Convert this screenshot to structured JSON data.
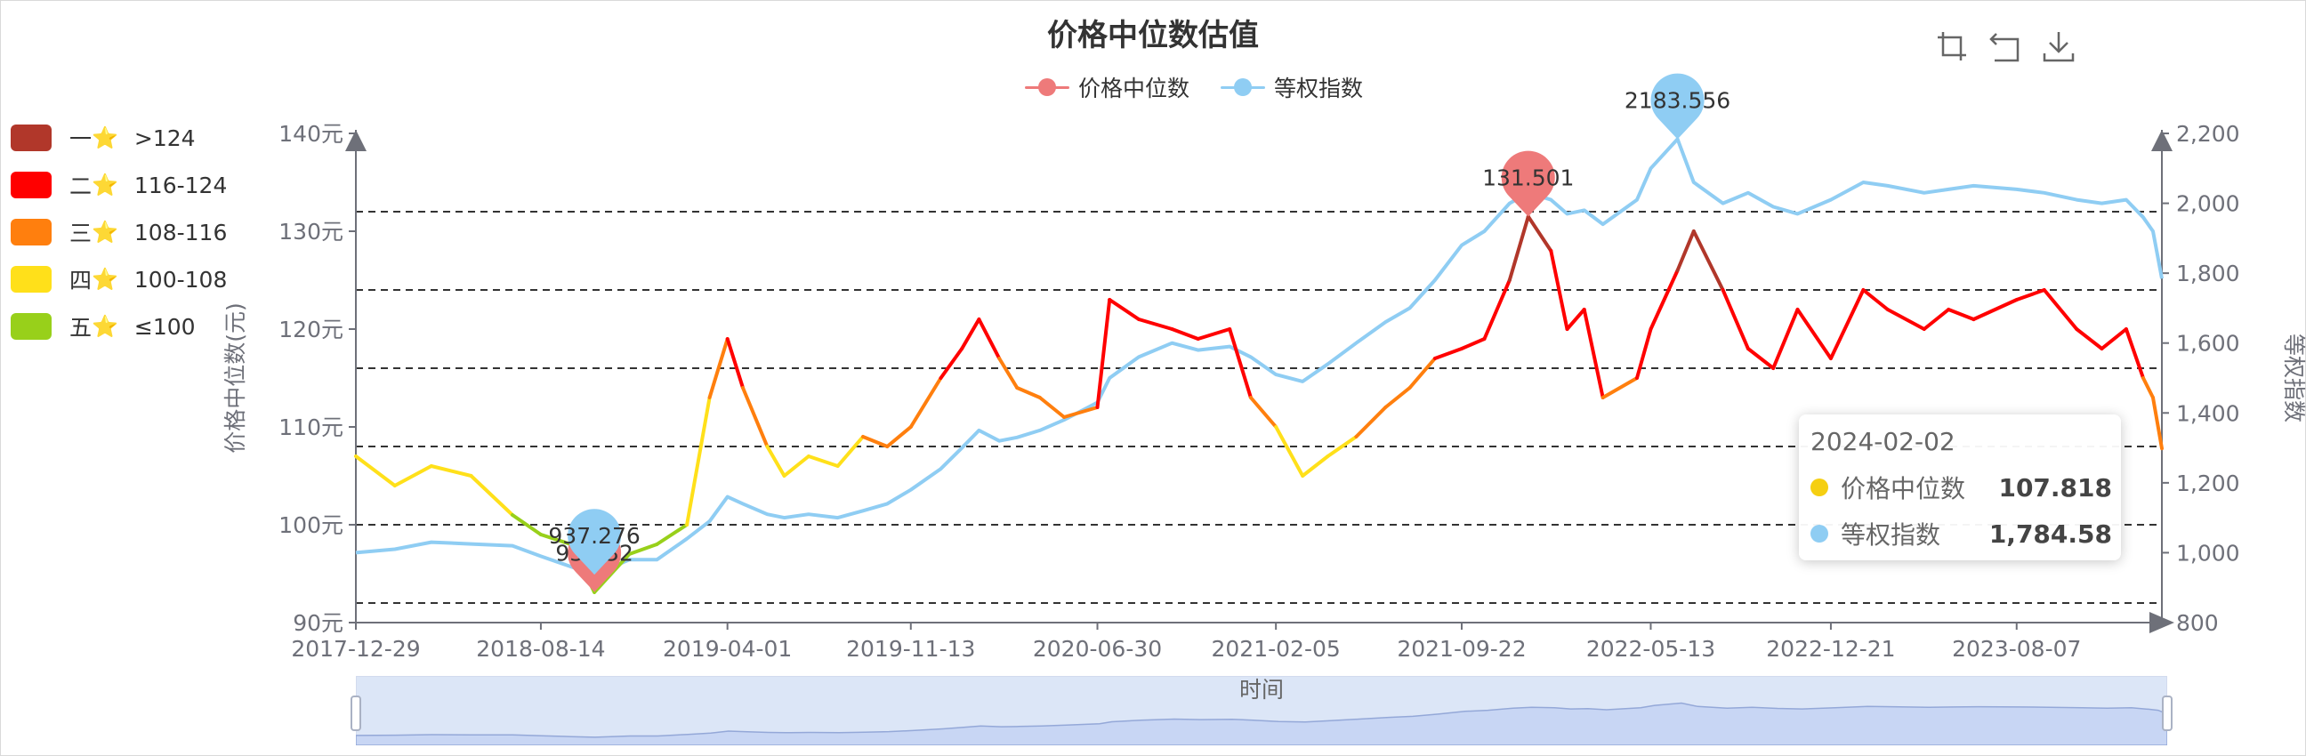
{
  "title": "价格中位数估值",
  "legend": [
    {
      "name": "价格中位数",
      "color": "#ee7a7a"
    },
    {
      "name": "等权指数",
      "color": "#8fcdf3"
    }
  ],
  "toolbox": {
    "zoom_icon": "area-zoom-icon",
    "back_icon": "zoom-reset-icon",
    "save_icon": "download-icon"
  },
  "visual_map": [
    {
      "level": "一",
      "range": ">124",
      "color": "#b1372a"
    },
    {
      "level": "二",
      "range": "116-124",
      "color": "#ff0000"
    },
    {
      "level": "三",
      "range": "108-116",
      "color": "#ff7f0e"
    },
    {
      "level": "四",
      "range": "100-108",
      "color": "#ffe01a"
    },
    {
      "level": "五",
      "range": "≤100",
      "color": "#98d01a"
    }
  ],
  "star_char": "⭐",
  "tooltip": {
    "date": "2024-02-02",
    "rows": [
      {
        "name": "价格中位数",
        "value": "107.818",
        "color": "#f5cf12"
      },
      {
        "name": "等权指数",
        "value": "1,784.58",
        "color": "#8fcdf3"
      }
    ]
  },
  "zoom_label": "时间",
  "chart_data": {
    "type": "line",
    "title": "价格中位数估值",
    "xlabel": "时间",
    "x_ticks": [
      "2017-12-29",
      "2018-08-14",
      "2019-04-01",
      "2019-11-13",
      "2020-06-30",
      "2021-02-05",
      "2021-09-22",
      "2022-05-13",
      "2022-12-21",
      "2023-08-07"
    ],
    "x_range": [
      "2017-12-29",
      "2024-02-02"
    ],
    "y_left": {
      "label": "价格中位数(元)",
      "range": [
        90,
        140
      ],
      "ticks": [
        "90元",
        "100元",
        "110元",
        "120元",
        "130元",
        "140元"
      ]
    },
    "y_right": {
      "label": "等权指数",
      "range": [
        800,
        2200
      ],
      "ticks": [
        "800",
        "1,000",
        "1,200",
        "1,400",
        "1,600",
        "1,800",
        "2,000",
        "2,200"
      ]
    },
    "reference_lines_left_axis": [
      92,
      100,
      108,
      116,
      124,
      132
    ],
    "series": [
      {
        "name": "价格中位数",
        "axis": "left",
        "x": [
          "2017-12-29",
          "2018-02-15",
          "2018-04-01",
          "2018-05-20",
          "2018-07-10",
          "2018-08-14",
          "2018-09-20",
          "2018-10-19",
          "2018-12-01",
          "2019-01-04",
          "2019-02-10",
          "2019-03-10",
          "2019-04-01",
          "2019-04-20",
          "2019-05-20",
          "2019-06-10",
          "2019-07-10",
          "2019-08-15",
          "2019-09-15",
          "2019-10-15",
          "2019-11-13",
          "2019-12-20",
          "2020-01-15",
          "2020-02-05",
          "2020-03-01",
          "2020-03-23",
          "2020-04-20",
          "2020-05-20",
          "2020-06-30",
          "2020-07-15",
          "2020-08-20",
          "2020-09-30",
          "2020-11-01",
          "2020-12-10",
          "2021-01-05",
          "2021-02-05",
          "2021-03-10",
          "2021-04-10",
          "2021-05-15",
          "2021-06-20",
          "2021-07-20",
          "2021-08-20",
          "2021-09-22",
          "2021-10-20",
          "2021-11-20",
          "2021-12-13",
          "2022-01-10",
          "2022-01-30",
          "2022-02-20",
          "2022-03-15",
          "2022-04-26",
          "2022-05-13",
          "2022-06-15",
          "2022-07-05",
          "2022-08-10",
          "2022-09-10",
          "2022-10-11",
          "2022-11-10",
          "2022-12-21",
          "2023-01-30",
          "2023-03-01",
          "2023-04-15",
          "2023-05-15",
          "2023-06-15",
          "2023-08-07",
          "2023-09-10",
          "2023-10-20",
          "2023-11-20",
          "2023-12-20",
          "2024-01-10",
          "2024-01-22",
          "2024-02-02"
        ],
        "values": [
          107,
          104,
          106,
          105,
          101,
          99,
          98,
          93.1,
          97,
          98,
          100,
          113,
          119,
          114,
          108,
          105,
          107,
          106,
          109,
          108,
          110,
          115,
          118,
          121,
          117,
          114,
          113,
          111,
          112,
          123,
          121,
          120,
          119,
          120,
          113,
          110,
          105,
          107,
          109,
          112,
          114,
          117,
          118,
          119,
          125,
          131.5,
          128,
          120,
          122,
          113,
          115,
          120,
          126,
          130,
          124,
          118,
          116,
          122,
          117,
          124,
          122,
          120,
          122,
          121,
          123,
          124,
          120,
          118,
          120,
          115,
          113,
          107.8
        ]
      },
      {
        "name": "等权指数",
        "axis": "right",
        "x": [
          "2017-12-29",
          "2018-02-15",
          "2018-04-01",
          "2018-05-20",
          "2018-07-10",
          "2018-08-14",
          "2018-09-20",
          "2018-10-19",
          "2018-12-01",
          "2019-01-04",
          "2019-02-10",
          "2019-03-10",
          "2019-04-01",
          "2019-04-20",
          "2019-05-20",
          "2019-06-10",
          "2019-07-10",
          "2019-08-15",
          "2019-09-15",
          "2019-10-15",
          "2019-11-13",
          "2019-12-20",
          "2020-01-15",
          "2020-02-05",
          "2020-03-01",
          "2020-03-23",
          "2020-04-20",
          "2020-05-20",
          "2020-06-30",
          "2020-07-15",
          "2020-08-20",
          "2020-09-30",
          "2020-11-01",
          "2020-12-10",
          "2021-01-05",
          "2021-02-05",
          "2021-03-10",
          "2021-04-10",
          "2021-05-15",
          "2021-06-20",
          "2021-07-20",
          "2021-08-20",
          "2021-09-22",
          "2021-10-20",
          "2021-11-20",
          "2021-12-13",
          "2022-01-10",
          "2022-01-30",
          "2022-02-20",
          "2022-03-15",
          "2022-04-26",
          "2022-05-13",
          "2022-06-15",
          "2022-07-05",
          "2022-08-10",
          "2022-09-10",
          "2022-10-11",
          "2022-11-10",
          "2022-12-21",
          "2023-01-30",
          "2023-03-01",
          "2023-04-15",
          "2023-05-15",
          "2023-06-15",
          "2023-08-07",
          "2023-09-10",
          "2023-10-20",
          "2023-11-20",
          "2023-12-20",
          "2024-01-10",
          "2024-01-22",
          "2024-02-02"
        ],
        "values": [
          1000,
          1010,
          1030,
          1025,
          1020,
          990,
          960,
          937.3,
          980,
          980,
          1040,
          1090,
          1160,
          1140,
          1110,
          1100,
          1110,
          1100,
          1120,
          1140,
          1180,
          1240,
          1300,
          1350,
          1320,
          1330,
          1350,
          1380,
          1430,
          1500,
          1560,
          1600,
          1580,
          1590,
          1560,
          1510,
          1490,
          1540,
          1600,
          1660,
          1700,
          1780,
          1880,
          1920,
          2000,
          2030,
          2010,
          1970,
          1980,
          1940,
          2010,
          2100,
          2183.6,
          2060,
          2000,
          2030,
          1990,
          1970,
          2010,
          2060,
          2050,
          2030,
          2040,
          2050,
          2040,
          2030,
          2010,
          2000,
          2010,
          1960,
          1920,
          1784.6
        ]
      }
    ],
    "mark_points": [
      {
        "series": "价格中位数",
        "date": "2018-10-19",
        "value": 93.132,
        "label": "93.132"
      },
      {
        "series": "等权指数",
        "date": "2018-10-19",
        "value": 937.276,
        "label": "937.276"
      },
      {
        "series": "价格中位数",
        "date": "2021-12-13",
        "value": 131.501,
        "label": "131.501"
      },
      {
        "series": "等权指数",
        "date": "2022-06-15",
        "value": 2183.556,
        "label": "2183.556"
      }
    ],
    "legend_position": "top-center",
    "grid": false
  }
}
